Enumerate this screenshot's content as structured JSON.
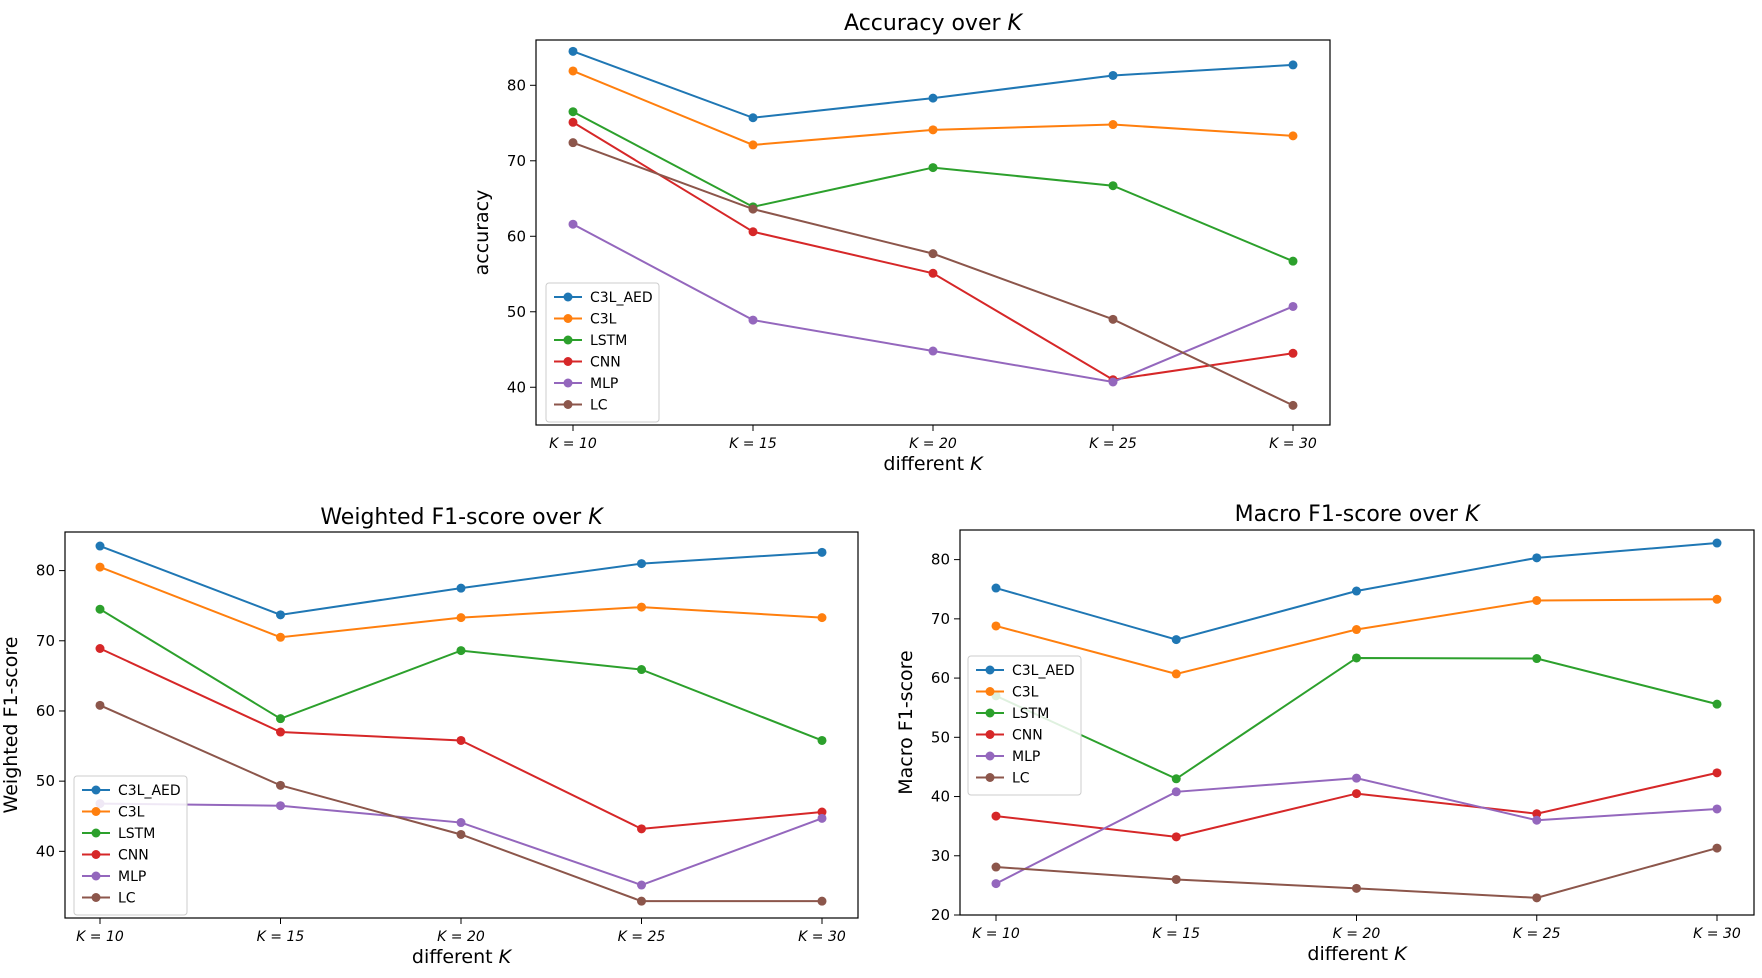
{
  "colors": {
    "C3L_AED": "#1f77b4",
    "C3L": "#ff7f0e",
    "LSTM": "#2ca02c",
    "CNN": "#d62728",
    "MLP": "#9467bd",
    "LC": "#8c564b"
  },
  "chart_data": [
    {
      "type": "line",
      "title": "Accuracy over K",
      "xlabel": "different K",
      "ylabel": "accuracy",
      "categories": [
        "K = 10",
        "K = 15",
        "K = 20",
        "K = 25",
        "K = 30"
      ],
      "ylim": [
        35,
        86
      ],
      "yticks": [
        40,
        50,
        60,
        70,
        80
      ],
      "legend": "lower-left",
      "series": [
        {
          "name": "C3L_AED",
          "values": [
            84.5,
            75.7,
            78.3,
            81.3,
            82.7
          ]
        },
        {
          "name": "C3L",
          "values": [
            81.9,
            72.1,
            74.1,
            74.8,
            73.3
          ]
        },
        {
          "name": "LSTM",
          "values": [
            76.5,
            63.9,
            69.1,
            66.7,
            56.7
          ]
        },
        {
          "name": "CNN",
          "values": [
            75.1,
            60.6,
            55.1,
            41.0,
            44.5
          ]
        },
        {
          "name": "MLP",
          "values": [
            61.6,
            48.9,
            44.8,
            40.7,
            50.7
          ]
        },
        {
          "name": "LC",
          "values": [
            72.4,
            63.6,
            57.7,
            49.0,
            37.6
          ]
        }
      ]
    },
    {
      "type": "line",
      "title": "Weighted F1-score over K",
      "xlabel": "different K",
      "ylabel": "Weighted F1-score",
      "categories": [
        "K = 10",
        "K = 15",
        "K = 20",
        "K = 25",
        "K = 30"
      ],
      "ylim": [
        30.5,
        85.5
      ],
      "yticks": [
        40,
        50,
        60,
        70,
        80
      ],
      "legend": "lower-left",
      "series": [
        {
          "name": "C3L_AED",
          "values": [
            83.5,
            73.7,
            77.5,
            81.0,
            82.6
          ]
        },
        {
          "name": "C3L",
          "values": [
            80.5,
            70.5,
            73.3,
            74.8,
            73.3
          ]
        },
        {
          "name": "LSTM",
          "values": [
            74.5,
            58.9,
            68.6,
            65.9,
            55.8
          ]
        },
        {
          "name": "CNN",
          "values": [
            68.9,
            57.0,
            55.8,
            43.2,
            45.6
          ]
        },
        {
          "name": "MLP",
          "values": [
            46.8,
            46.5,
            44.1,
            35.2,
            44.7
          ]
        },
        {
          "name": "LC",
          "values": [
            60.8,
            49.4,
            42.4,
            32.9,
            32.9
          ]
        }
      ]
    },
    {
      "type": "line",
      "title": "Macro F1-score over K",
      "xlabel": "different K",
      "ylabel": "Macro F1-score",
      "categories": [
        "K = 10",
        "K = 15",
        "K = 20",
        "K = 25",
        "K = 30"
      ],
      "ylim": [
        20,
        85
      ],
      "yticks": [
        20,
        30,
        40,
        50,
        60,
        70,
        80
      ],
      "legend": "center-left",
      "series": [
        {
          "name": "C3L_AED",
          "values": [
            75.2,
            66.5,
            74.7,
            80.3,
            82.8
          ]
        },
        {
          "name": "C3L",
          "values": [
            68.8,
            60.7,
            68.2,
            73.1,
            73.3
          ]
        },
        {
          "name": "LSTM",
          "values": [
            57.0,
            43.0,
            63.4,
            63.3,
            55.6
          ]
        },
        {
          "name": "CNN",
          "values": [
            36.7,
            33.2,
            40.5,
            37.1,
            44.0
          ]
        },
        {
          "name": "MLP",
          "values": [
            25.3,
            40.8,
            43.1,
            36.0,
            37.9
          ]
        },
        {
          "name": "LC",
          "values": [
            28.1,
            26.0,
            24.5,
            22.9,
            31.3
          ]
        }
      ]
    }
  ]
}
